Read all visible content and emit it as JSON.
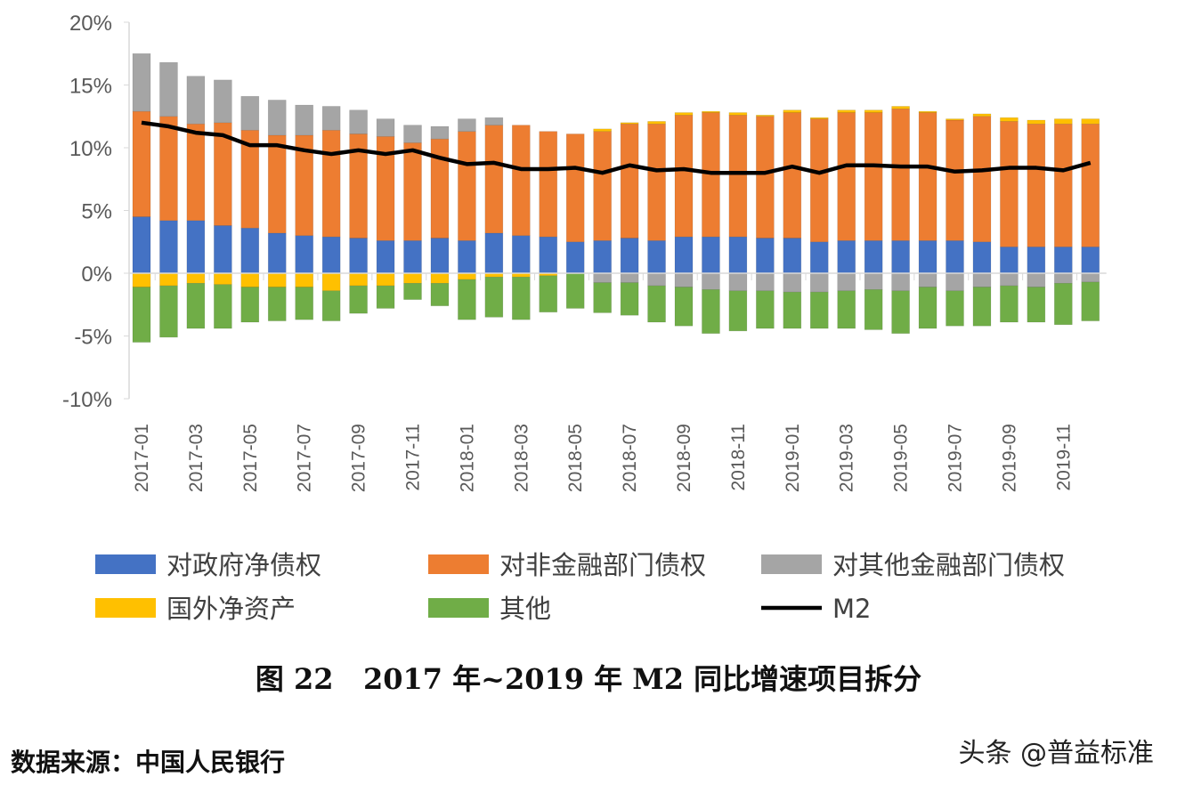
{
  "chart_data": {
    "type": "bar",
    "stacked": true,
    "title": "图 22   2017 年~2019 年 M2 同比增速项目拆分",
    "source": "数据来源：中国人民银行",
    "watermark": "头条 @普益标准",
    "ylim": [
      -10,
      20
    ],
    "yticks": [
      20,
      15,
      10,
      5,
      0,
      -5,
      -10
    ],
    "ytick_labels": [
      "20%",
      "15%",
      "10%",
      "5%",
      "0%",
      "-5%",
      "-10%"
    ],
    "grid": false,
    "legend_position": "bottom",
    "categories": [
      "2017-01",
      "2017-02",
      "2017-03",
      "2017-04",
      "2017-05",
      "2017-06",
      "2017-07",
      "2017-08",
      "2017-09",
      "2017-10",
      "2017-11",
      "2017-12",
      "2018-01",
      "2018-02",
      "2018-03",
      "2018-04",
      "2018-05",
      "2018-06",
      "2018-07",
      "2018-08",
      "2018-09",
      "2018-10",
      "2018-11",
      "2018-12",
      "2019-01",
      "2019-02",
      "2019-03",
      "2019-04",
      "2019-05",
      "2019-06",
      "2019-07",
      "2019-08",
      "2019-09",
      "2019-10",
      "2019-11",
      "2019-12"
    ],
    "xtick_labels": [
      "2017-01",
      "2017-03",
      "2017-05",
      "2017-07",
      "2017-09",
      "2017-11",
      "2018-01",
      "2018-03",
      "2018-05",
      "2018-07",
      "2018-09",
      "2018-11",
      "2019-01",
      "2019-03",
      "2019-05",
      "2019-07",
      "2019-09",
      "2019-11"
    ],
    "series": [
      {
        "name": "对政府净债权",
        "color": "#4472C4",
        "values": [
          4.5,
          4.2,
          4.2,
          3.8,
          3.6,
          3.2,
          3.0,
          2.9,
          2.8,
          2.6,
          2.6,
          2.8,
          2.6,
          3.2,
          3.0,
          2.9,
          2.5,
          2.6,
          2.8,
          2.6,
          2.9,
          2.9,
          2.9,
          2.8,
          2.8,
          2.5,
          2.6,
          2.6,
          2.6,
          2.6,
          2.6,
          2.5,
          2.1,
          2.1,
          2.1,
          2.1
        ]
      },
      {
        "name": "对非金融部门债权",
        "color": "#ED7D31",
        "values": [
          8.4,
          8.3,
          7.7,
          8.2,
          7.8,
          7.8,
          8.0,
          8.5,
          8.3,
          8.3,
          7.8,
          7.9,
          8.7,
          8.6,
          8.8,
          8.4,
          8.6,
          8.7,
          9.1,
          9.3,
          9.7,
          9.9,
          9.7,
          9.7,
          10.0,
          9.8,
          10.2,
          10.2,
          10.5,
          10.2,
          9.6,
          10.0,
          10.0,
          9.8,
          9.8,
          9.8
        ]
      },
      {
        "name": "对其他金融部门债权",
        "color": "#A5A5A5",
        "values": [
          4.6,
          4.3,
          3.8,
          3.4,
          2.7,
          2.8,
          2.4,
          1.9,
          1.9,
          1.4,
          1.4,
          1.0,
          1.0,
          0.6,
          0,
          0,
          0,
          -0.75,
          -0.75,
          -1.0,
          -1.1,
          -1.3,
          -1.4,
          -1.4,
          -1.5,
          -1.5,
          -1.4,
          -1.3,
          -1.4,
          -1.1,
          -1.4,
          -1.1,
          -1.0,
          -1.1,
          -0.8,
          -0.7
        ]
      },
      {
        "name": "国外净资产",
        "color": "#FFC000",
        "values": [
          -1.1,
          -1.0,
          -0.8,
          -0.9,
          -1.1,
          -1.1,
          -1.1,
          -1.4,
          -1.0,
          -1.0,
          -0.8,
          -0.8,
          -0.5,
          -0.3,
          -0.3,
          -0.2,
          0,
          0.2,
          0.1,
          0.2,
          0.2,
          0.1,
          0.2,
          0.1,
          0.2,
          0.1,
          0.2,
          0.2,
          0.2,
          0.1,
          0.1,
          0.2,
          0.3,
          0.3,
          0.4,
          0.4
        ]
      },
      {
        "name": "其他",
        "color": "#70AD47",
        "values": [
          -4.4,
          -4.1,
          -3.6,
          -3.5,
          -2.8,
          -2.7,
          -2.6,
          -2.4,
          -2.2,
          -1.8,
          -1.3,
          -1.8,
          -3.2,
          -3.2,
          -3.4,
          -2.9,
          -2.8,
          -2.4,
          -2.6,
          -2.9,
          -3.1,
          -3.5,
          -3.2,
          -3.0,
          -2.9,
          -2.9,
          -3.0,
          -3.2,
          -3.4,
          -3.3,
          -2.8,
          -3.1,
          -2.9,
          -2.8,
          -3.3,
          -3.1
        ]
      }
    ],
    "line": {
      "name": "M2",
      "color": "#000000",
      "values": [
        12.0,
        11.7,
        11.2,
        11.0,
        10.2,
        10.2,
        9.8,
        9.5,
        9.8,
        9.5,
        9.8,
        9.2,
        8.7,
        8.8,
        8.3,
        8.3,
        8.4,
        8.0,
        8.6,
        8.2,
        8.3,
        8.0,
        8.0,
        8.0,
        8.5,
        8.0,
        8.6,
        8.6,
        8.5,
        8.5,
        8.1,
        8.2,
        8.4,
        8.4,
        8.2,
        8.8
      ]
    }
  }
}
